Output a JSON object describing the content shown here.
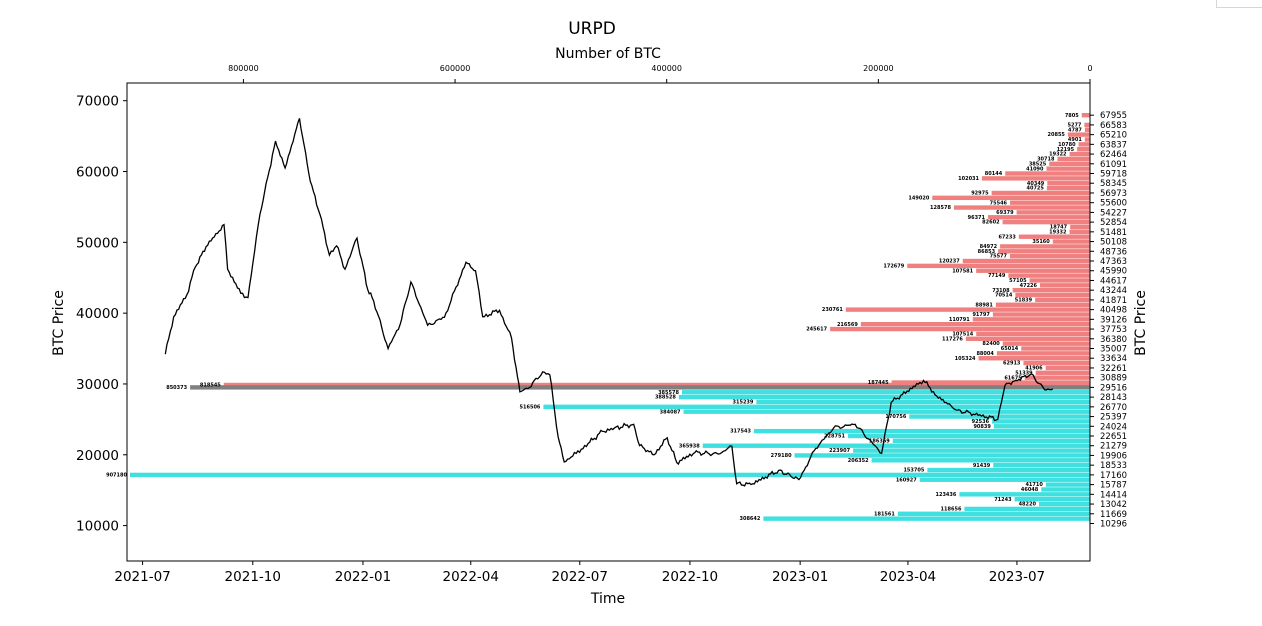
{
  "chart_data": {
    "type": "line",
    "title": "URPD",
    "xlabel": "Time",
    "ylabel": "BTC Price",
    "ylabel_right": "BTC Price",
    "xlabel_top": "Number of BTC",
    "ylim": [
      5000,
      72500
    ],
    "date_range": [
      "2021-06-18",
      "2023-08-31"
    ],
    "btc_range": [
      910000,
      0
    ],
    "x_ticks": [
      "2021-07",
      "2021-10",
      "2022-01",
      "2022-04",
      "2022-07",
      "2022-10",
      "2023-01",
      "2023-04",
      "2023-07"
    ],
    "x_tick_dates": [
      "2021-07-01",
      "2021-10-01",
      "2022-01-01",
      "2022-04-01",
      "2022-07-01",
      "2022-10-01",
      "2023-01-01",
      "2023-04-01",
      "2023-07-01"
    ],
    "top_ticks": [
      800000,
      600000,
      400000,
      200000,
      0
    ],
    "top_tick_labels": [
      "800000",
      "600000",
      "400000",
      "200000",
      "0"
    ],
    "y_ticks": [
      10000,
      20000,
      30000,
      40000,
      50000,
      60000,
      70000
    ],
    "y_tick_labels": [
      "10000",
      "20000",
      "30000",
      "40000",
      "50000",
      "60000",
      "70000"
    ],
    "price_line_color": "#000000",
    "colors": {
      "above": "#f08080",
      "below": "#40e0e0",
      "current": "#808080"
    },
    "price_series": {
      "name": "",
      "points": [
        [
          "2021-07-20",
          34200
        ],
        [
          "2021-07-27",
          39500
        ],
        [
          "2021-08-07",
          42600
        ],
        [
          "2021-08-14",
          46500
        ],
        [
          "2021-08-23",
          49400
        ],
        [
          "2021-09-07",
          52500
        ],
        [
          "2021-09-10",
          46200
        ],
        [
          "2021-09-21",
          42800
        ],
        [
          "2021-09-27",
          42200
        ],
        [
          "2021-10-01",
          47000
        ],
        [
          "2021-10-07",
          54000
        ],
        [
          "2021-10-20",
          64300
        ],
        [
          "2021-10-28",
          60500
        ],
        [
          "2021-11-09",
          67500
        ],
        [
          "2021-11-18",
          58600
        ],
        [
          "2021-11-26",
          54000
        ],
        [
          "2021-12-04",
          48200
        ],
        [
          "2021-12-10",
          49500
        ],
        [
          "2021-12-17",
          46200
        ],
        [
          "2021-12-27",
          50600
        ],
        [
          "2022-01-05",
          43300
        ],
        [
          "2022-01-10",
          41700
        ],
        [
          "2022-01-22",
          35000
        ],
        [
          "2022-02-01",
          38400
        ],
        [
          "2022-02-10",
          44400
        ],
        [
          "2022-02-24",
          38300
        ],
        [
          "2022-03-10",
          39400
        ],
        [
          "2022-03-28",
          47200
        ],
        [
          "2022-04-05",
          46000
        ],
        [
          "2022-04-11",
          39500
        ],
        [
          "2022-04-25",
          40400
        ],
        [
          "2022-05-05",
          36500
        ],
        [
          "2022-05-10",
          31000
        ],
        [
          "2022-05-12",
          28900
        ],
        [
          "2022-05-20",
          29500
        ],
        [
          "2022-05-31",
          31700
        ],
        [
          "2022-06-06",
          31300
        ],
        [
          "2022-06-13",
          22500
        ],
        [
          "2022-06-18",
          19000
        ],
        [
          "2022-06-28",
          20200
        ],
        [
          "2022-07-08",
          21600
        ],
        [
          "2022-07-20",
          23300
        ],
        [
          "2022-07-30",
          23800
        ],
        [
          "2022-08-15",
          24300
        ],
        [
          "2022-08-20",
          21300
        ],
        [
          "2022-09-01",
          20000
        ],
        [
          "2022-09-12",
          22400
        ],
        [
          "2022-09-20",
          18900
        ],
        [
          "2022-10-05",
          20300
        ],
        [
          "2022-10-25",
          20100
        ],
        [
          "2022-11-05",
          21200
        ],
        [
          "2022-11-09",
          15900
        ],
        [
          "2022-11-21",
          15800
        ],
        [
          "2022-12-14",
          17800
        ],
        [
          "2022-12-31",
          16500
        ],
        [
          "2023-01-14",
          20900
        ],
        [
          "2023-01-29",
          23800
        ],
        [
          "2023-02-16",
          24300
        ],
        [
          "2023-03-10",
          20200
        ],
        [
          "2023-03-18",
          27400
        ],
        [
          "2023-04-11",
          30200
        ],
        [
          "2023-04-14",
          30500
        ],
        [
          "2023-04-25",
          28300
        ],
        [
          "2023-05-12",
          26300
        ],
        [
          "2023-06-15",
          25000
        ],
        [
          "2023-06-21",
          29800
        ],
        [
          "2023-06-30",
          30500
        ],
        [
          "2023-07-13",
          31400
        ],
        [
          "2023-07-24",
          29200
        ],
        [
          "2023-07-31",
          29300
        ]
      ]
    },
    "urpd_bars": [
      {
        "price": 67955,
        "btc": 7805
      },
      {
        "price": 66583,
        "btc": 5277
      },
      {
        "price": 65896,
        "btc": 4787
      },
      {
        "price": 65210,
        "btc": 20855
      },
      {
        "price": 64524,
        "btc": 4901
      },
      {
        "price": 63837,
        "btc": 10780
      },
      {
        "price": 63151,
        "btc": 12195
      },
      {
        "price": 62464,
        "btc": 19322
      },
      {
        "price": 61778,
        "btc": 30718
      },
      {
        "price": 61091,
        "btc": 38525
      },
      {
        "price": 60405,
        "btc": 41090
      },
      {
        "price": 59718,
        "btc": 80144
      },
      {
        "price": 59032,
        "btc": 102031
      },
      {
        "price": 58345,
        "btc": 40349
      },
      {
        "price": 57659,
        "btc": 40725
      },
      {
        "price": 56973,
        "btc": 92975
      },
      {
        "price": 56286,
        "btc": 149020
      },
      {
        "price": 55600,
        "btc": 75546
      },
      {
        "price": 54913,
        "btc": 128578
      },
      {
        "price": 54227,
        "btc": 69379
      },
      {
        "price": 53540,
        "btc": 96371
      },
      {
        "price": 52854,
        "btc": 82602
      },
      {
        "price": 52167,
        "btc": 18747
      },
      {
        "price": 51481,
        "btc": 19332
      },
      {
        "price": 50795,
        "btc": 67233
      },
      {
        "price": 50108,
        "btc": 35160
      },
      {
        "price": 49422,
        "btc": 84972
      },
      {
        "price": 48736,
        "btc": 86853
      },
      {
        "price": 48049,
        "btc": 75577
      },
      {
        "price": 47363,
        "btc": 120237
      },
      {
        "price": 46676,
        "btc": 172679
      },
      {
        "price": 45990,
        "btc": 107581
      },
      {
        "price": 45303,
        "btc": 77149
      },
      {
        "price": 44617,
        "btc": 57105
      },
      {
        "price": 43931,
        "btc": 47226
      },
      {
        "price": 43244,
        "btc": 73108
      },
      {
        "price": 42558,
        "btc": 70514
      },
      {
        "price": 41871,
        "btc": 51839
      },
      {
        "price": 41185,
        "btc": 88981
      },
      {
        "price": 40498,
        "btc": 230761
      },
      {
        "price": 39812,
        "btc": 91797
      },
      {
        "price": 39126,
        "btc": 110791
      },
      {
        "price": 38439,
        "btc": 216569
      },
      {
        "price": 37753,
        "btc": 245617
      },
      {
        "price": 37066,
        "btc": 107514
      },
      {
        "price": 36380,
        "btc": 117276
      },
      {
        "price": 35693,
        "btc": 82400
      },
      {
        "price": 35007,
        "btc": 65014
      },
      {
        "price": 34321,
        "btc": 88004
      },
      {
        "price": 33634,
        "btc": 105324
      },
      {
        "price": 32948,
        "btc": 62913
      },
      {
        "price": 32261,
        "btc": 41906
      },
      {
        "price": 31575,
        "btc": 51339
      },
      {
        "price": 30889,
        "btc": 61675
      },
      {
        "price": 30202,
        "btc": 187445
      },
      {
        "price": 29858,
        "btc": 818545
      },
      {
        "price": 29516,
        "btc": 850373
      },
      {
        "price": 28829,
        "btc": 385578
      },
      {
        "price": 28143,
        "btc": 388528
      },
      {
        "price": 27456,
        "btc": 315239
      },
      {
        "price": 26770,
        "btc": 516506
      },
      {
        "price": 26084,
        "btc": 384087
      },
      {
        "price": 25397,
        "btc": 170756
      },
      {
        "price": 24711,
        "btc": 92536
      },
      {
        "price": 24024,
        "btc": 90839
      },
      {
        "price": 23338,
        "btc": 317543
      },
      {
        "price": 22651,
        "btc": 228751
      },
      {
        "price": 21965,
        "btc": 186359
      },
      {
        "price": 21279,
        "btc": 365938
      },
      {
        "price": 20592,
        "btc": 223907
      },
      {
        "price": 19906,
        "btc": 279180
      },
      {
        "price": 19219,
        "btc": 206352
      },
      {
        "price": 18533,
        "btc": 91439
      },
      {
        "price": 17846,
        "btc": 153705
      },
      {
        "price": 17160,
        "btc": 907180
      },
      {
        "price": 16474,
        "btc": 160927
      },
      {
        "price": 15787,
        "btc": 41710
      },
      {
        "price": 15101,
        "btc": 46048
      },
      {
        "price": 14414,
        "btc": 123436
      },
      {
        "price": 13728,
        "btc": 71243
      },
      {
        "price": 13042,
        "btc": 48220
      },
      {
        "price": 12355,
        "btc": 118656
      },
      {
        "price": 11669,
        "btc": 181561
      },
      {
        "price": 10982,
        "btc": 308642
      }
    ],
    "price_split": 29700,
    "current_bar_price": 29516,
    "right_ticks": [
      67955,
      66583,
      65210,
      63837,
      62464,
      61091,
      59718,
      58345,
      56973,
      55600,
      54227,
      52854,
      51481,
      50108,
      48736,
      47363,
      45990,
      44617,
      43244,
      41871,
      40498,
      39126,
      37753,
      36380,
      35007,
      33634,
      32261,
      30889,
      29516,
      28143,
      26770,
      25397,
      24024,
      22651,
      21279,
      19906,
      18533,
      17160,
      15787,
      14414,
      13042,
      11669,
      10296
    ],
    "right_tick_labels": [
      "67955",
      "66583",
      "65210",
      "63837",
      "62464",
      "61091",
      "59718",
      "58345",
      "56973",
      "55600",
      "54227",
      "52854",
      "51481",
      "50108",
      "48736",
      "47363",
      "45990",
      "44617",
      "43244",
      "41871",
      "40498",
      "39126",
      "37753",
      "36380",
      "35007",
      "33634",
      "32261",
      "30889",
      "29516",
      "28143",
      "26770",
      "25397",
      "24024",
      "22651",
      "21279",
      "19906",
      "18533",
      "17160",
      "15787",
      "14414",
      "13042",
      "11669",
      "10296"
    ]
  }
}
